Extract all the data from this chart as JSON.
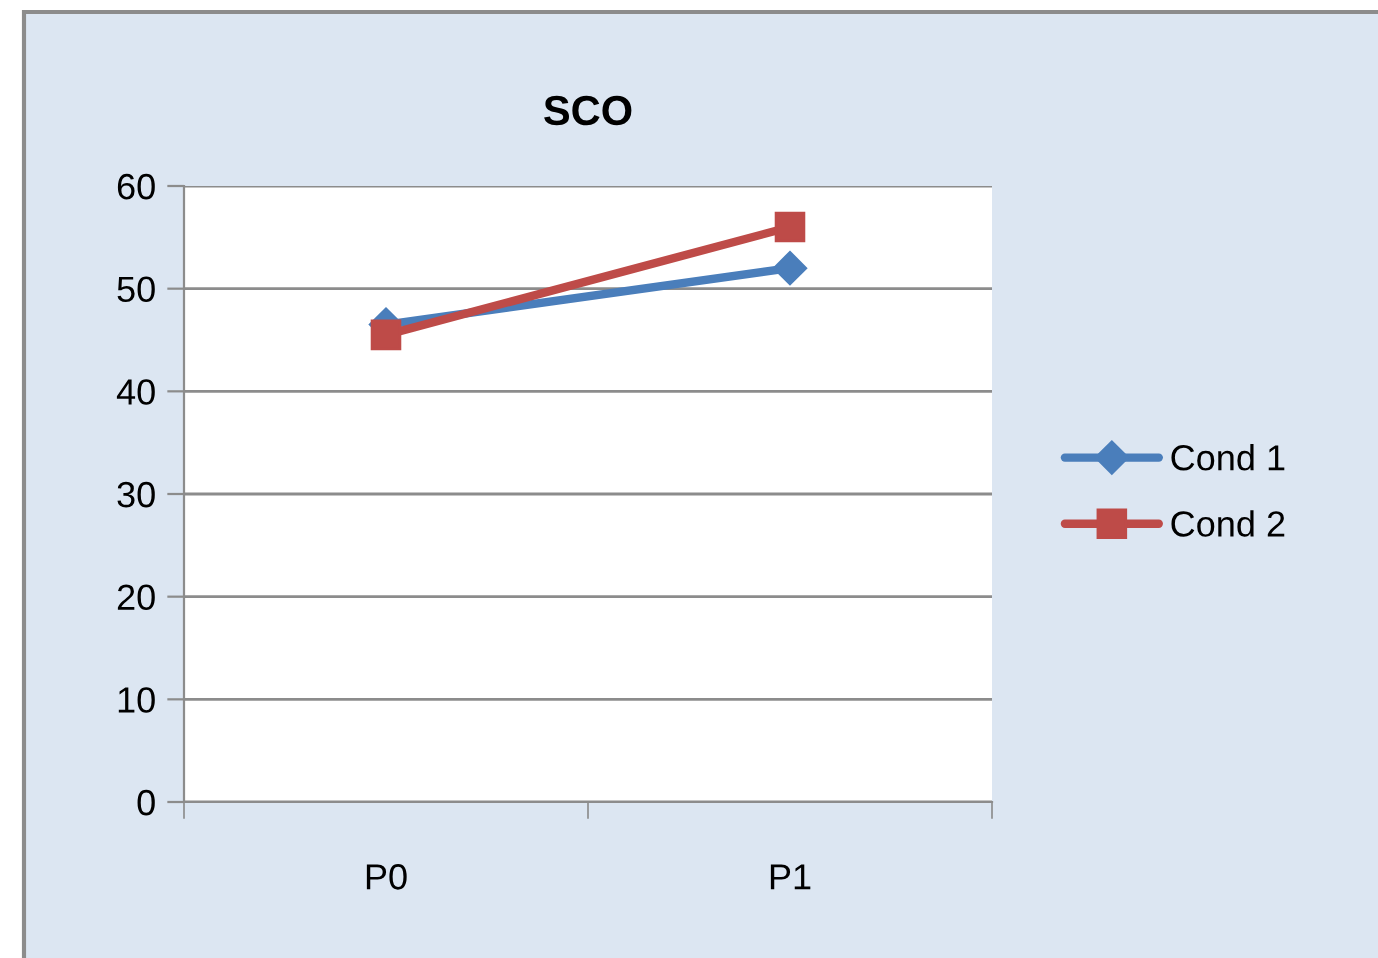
{
  "chart_data": {
    "type": "line",
    "title": "SCO",
    "categories": [
      "P0",
      "P1"
    ],
    "series": [
      {
        "name": "Cond 1",
        "color": "#4a7ebb",
        "values": [
          46.5,
          52
        ],
        "marker": "diamond"
      },
      {
        "name": "Cond 2",
        "color": "#be4b48",
        "values": [
          45.5,
          56
        ],
        "marker": "square"
      }
    ],
    "ylim": [
      0,
      60
    ],
    "yticks": [
      0,
      10,
      20,
      30,
      40,
      50,
      60
    ],
    "grid": "y",
    "legend": "right",
    "line_style": "solid"
  }
}
